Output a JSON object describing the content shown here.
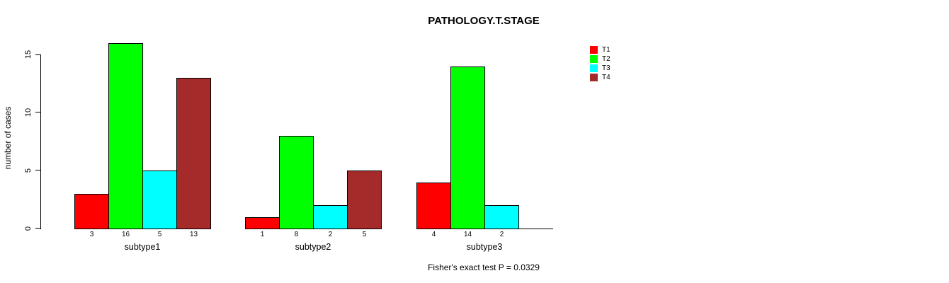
{
  "chart_data": {
    "type": "bar",
    "title": "PATHOLOGY.T.STAGE",
    "ylabel": "number of cases",
    "annotation": "Fisher's exact test P = 0.0329",
    "categories": [
      "subtype1",
      "subtype2",
      "subtype3"
    ],
    "series": [
      {
        "name": "T1",
        "color": "#ff0000",
        "values": [
          3,
          1,
          4
        ]
      },
      {
        "name": "T2",
        "color": "#00ff00",
        "values": [
          16,
          8,
          14
        ]
      },
      {
        "name": "T3",
        "color": "#00ffff",
        "values": [
          5,
          2,
          2
        ]
      },
      {
        "name": "T4",
        "color": "#a52a2a",
        "values": [
          13,
          5,
          0
        ]
      }
    ],
    "y_ticks": [
      0,
      5,
      10,
      15
    ],
    "ylim": [
      0,
      16
    ],
    "bar_value_labels": true,
    "legend_position": "top-right",
    "grid": false
  }
}
